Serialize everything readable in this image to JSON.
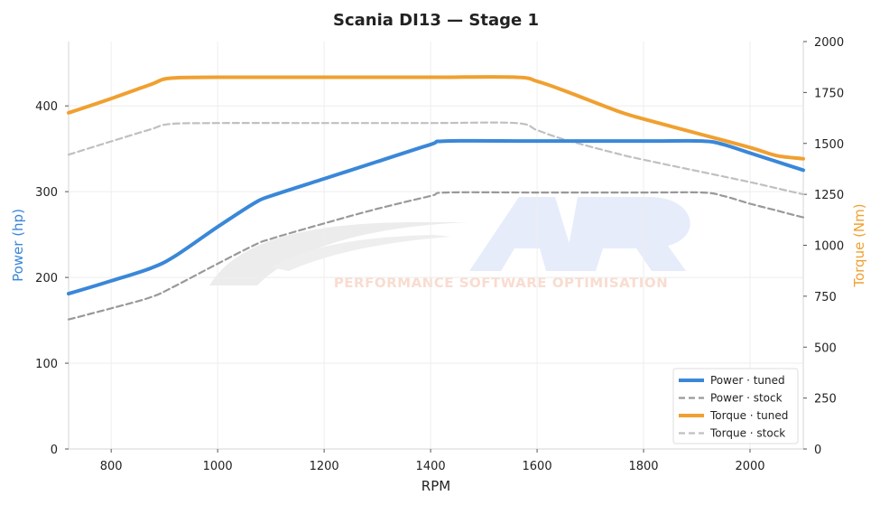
{
  "colors": {
    "power_tuned": "#3a87d8",
    "power_stock": "#999999",
    "torque_tuned": "#f0a030",
    "torque_stock": "#c0c0c0",
    "grid": "#eeeeee",
    "axis": "#dddddd"
  },
  "watermark": {
    "logo_icon": "ar-logo-icon",
    "tagline": "PERFORMANCE SOFTWARE OPTIMISATION"
  },
  "chart_data": {
    "type": "line",
    "title": "Scania DI13 — Stage 1",
    "xlabel": "RPM",
    "ylabel_left": "Power (hp)",
    "ylabel_right": "Torque (Nm)",
    "xlim": [
      720,
      2100
    ],
    "ylim_left": [
      0,
      475
    ],
    "ylim_right": [
      0,
      2000
    ],
    "xticks": [
      800,
      1000,
      1200,
      1400,
      1600,
      1800,
      2000
    ],
    "yticks_left": [
      0,
      100,
      200,
      300,
      400
    ],
    "yticks_right": [
      0,
      250,
      500,
      750,
      1000,
      1250,
      1500,
      1750,
      2000
    ],
    "grid": true,
    "legend": "bottom-right",
    "series": [
      {
        "name": "Power · tuned",
        "axis": "left",
        "style": "solid",
        "x": [
          720,
          800,
          875,
          920,
          1000,
          1070,
          1100,
          1200,
          1300,
          1400,
          1430,
          1600,
          1800,
          1910,
          1950,
          2000,
          2050,
          2100
        ],
        "y": [
          181,
          196,
          211,
          225,
          259,
          287,
          295,
          315,
          335,
          355,
          359,
          359,
          359,
          359,
          355,
          345,
          335,
          325
        ]
      },
      {
        "name": "Power · stock",
        "axis": "left",
        "style": "dashed",
        "x": [
          720,
          800,
          875,
          920,
          1000,
          1070,
          1100,
          1200,
          1300,
          1400,
          1430,
          1600,
          1800,
          1910,
          1950,
          2000,
          2050,
          2100
        ],
        "y": [
          151,
          164,
          177,
          190,
          216,
          238,
          245,
          263,
          280,
          295,
          299,
          299,
          299,
          299,
          295,
          286,
          278,
          270
        ]
      },
      {
        "name": "Torque · tuned",
        "axis": "right",
        "style": "solid",
        "x": [
          720,
          800,
          875,
          910,
          1000,
          1200,
          1400,
          1560,
          1600,
          1650,
          1750,
          1800,
          1900,
          2000,
          2050,
          2100
        ],
        "y": [
          1650,
          1720,
          1790,
          1820,
          1825,
          1825,
          1825,
          1825,
          1805,
          1760,
          1660,
          1620,
          1550,
          1480,
          1440,
          1425
        ]
      },
      {
        "name": "Torque · stock",
        "axis": "right",
        "style": "dashed",
        "x": [
          720,
          800,
          875,
          910,
          1000,
          1200,
          1400,
          1560,
          1600,
          1650,
          1750,
          1800,
          1900,
          2000,
          2050,
          2100
        ],
        "y": [
          1445,
          1510,
          1570,
          1595,
          1600,
          1600,
          1600,
          1600,
          1565,
          1520,
          1450,
          1420,
          1365,
          1310,
          1280,
          1250
        ]
      }
    ]
  }
}
